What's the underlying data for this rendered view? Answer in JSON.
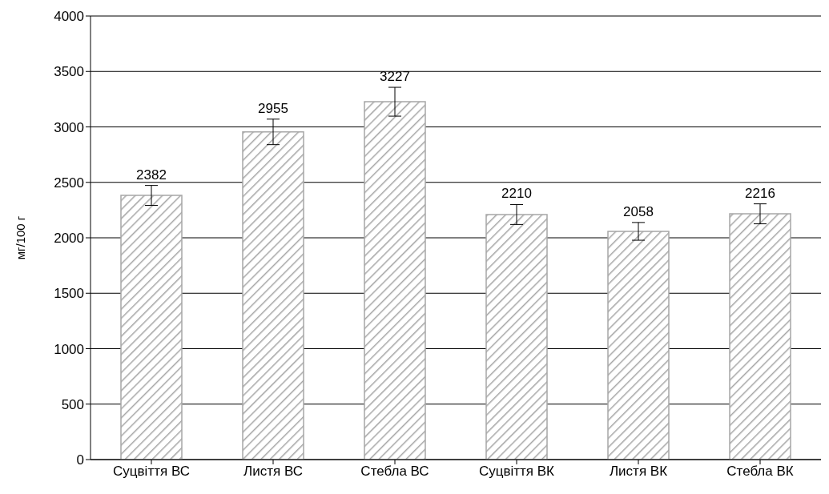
{
  "chart_data": {
    "type": "bar",
    "ylabel": "мг/100 г",
    "categories": [
      "Суцвіття ВС",
      "Листя ВС",
      "Стебла ВС",
      "Суцвіття ВК",
      "Листя ВК",
      "Стебла ВК"
    ],
    "values": [
      2382,
      2955,
      3227,
      2210,
      2058,
      2216
    ],
    "errors": [
      90,
      115,
      130,
      90,
      80,
      90
    ],
    "color": "#a6a6a6",
    "ylim": [
      0,
      4000
    ],
    "yticks": [
      0,
      500,
      1000,
      1500,
      2000,
      2500,
      3000,
      3500,
      4000
    ],
    "grid": "y",
    "data_labels": true
  }
}
